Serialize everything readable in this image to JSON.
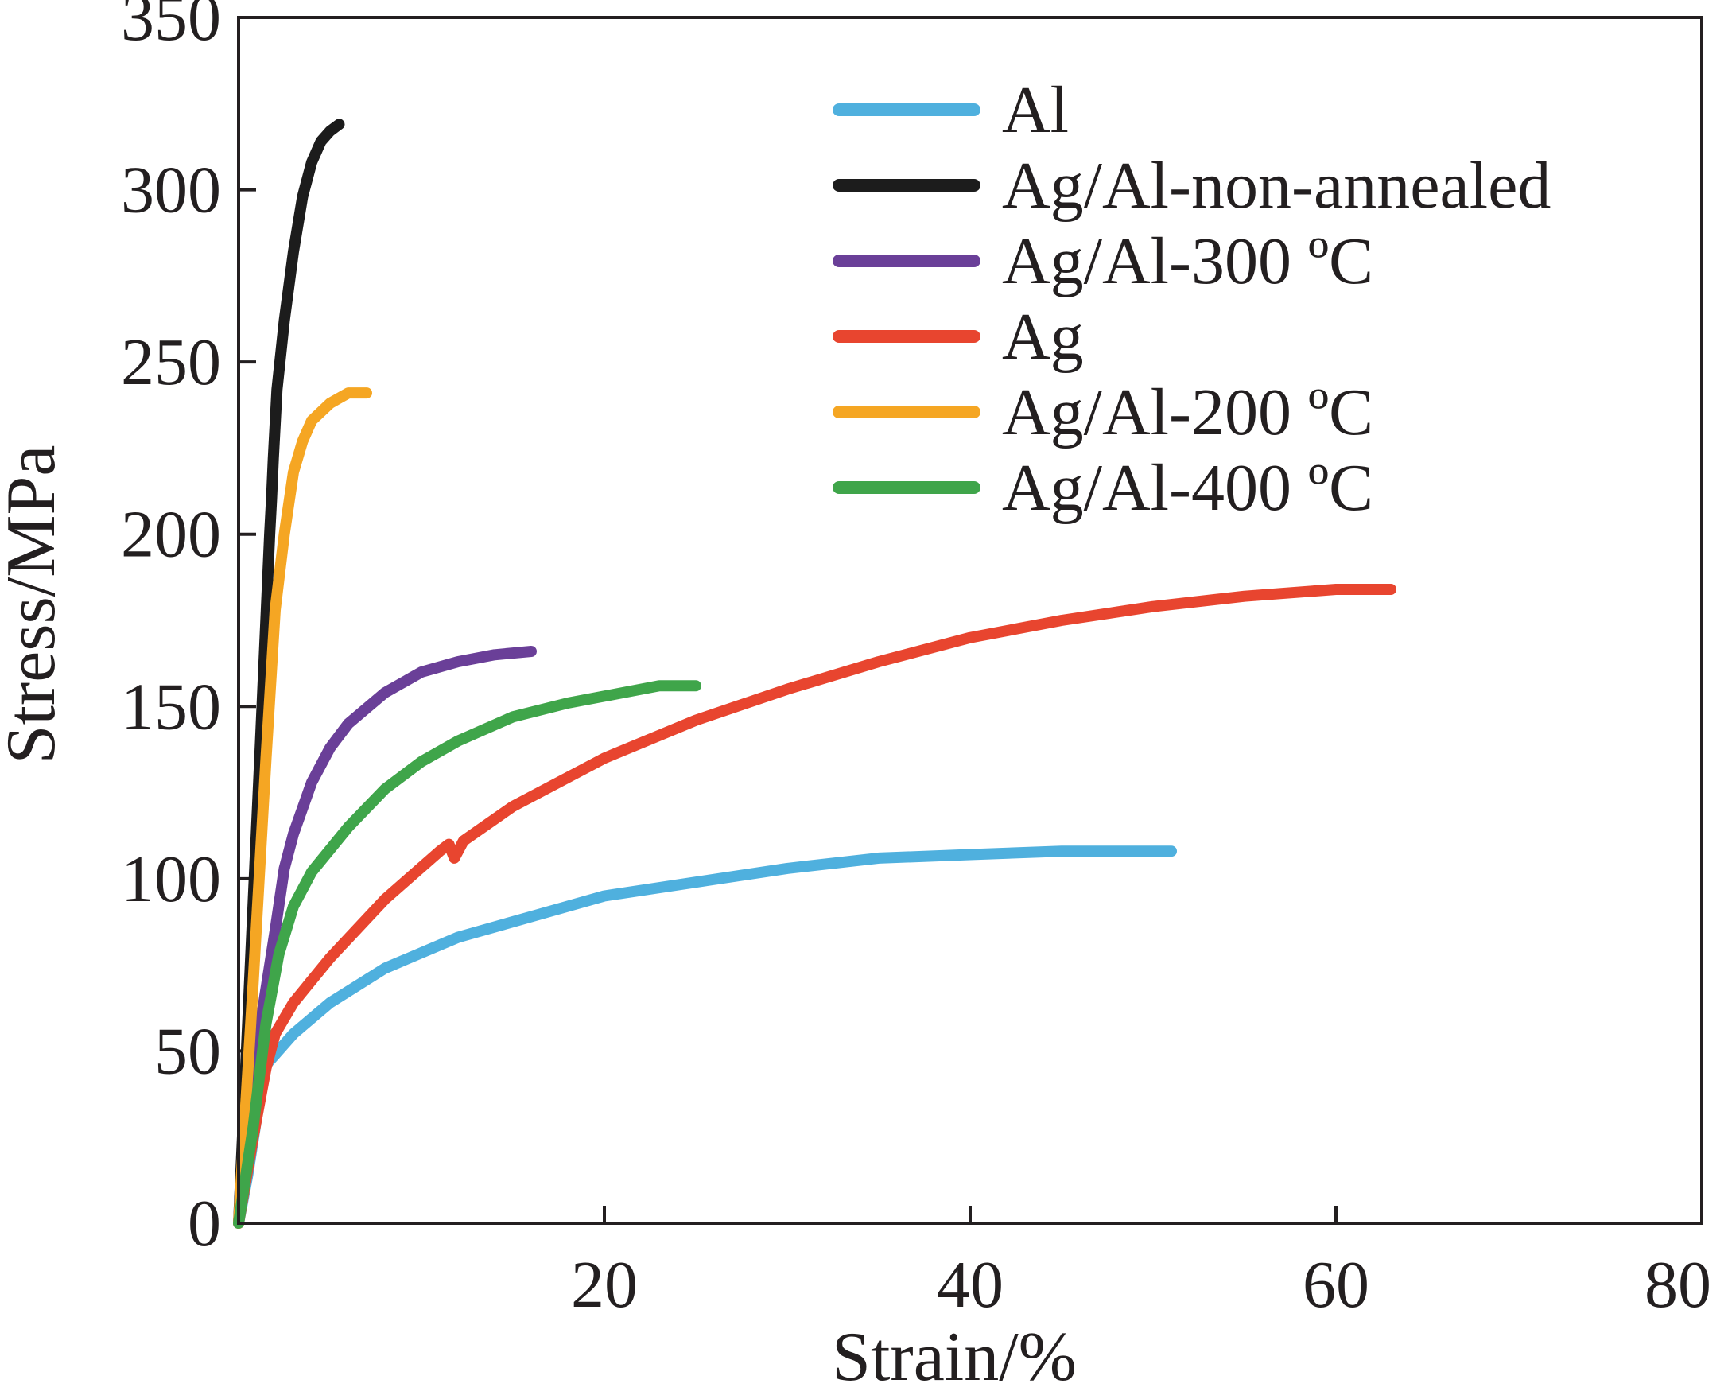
{
  "chart_data": {
    "type": "line",
    "title": "",
    "xlabel": "Strain/%",
    "ylabel": "Stress/MPa",
    "xlim": [
      0,
      80
    ],
    "ylim": [
      0,
      350
    ],
    "x_ticks": [
      "20",
      "40",
      "60",
      "80"
    ],
    "y_ticks": [
      "0",
      "50",
      "100",
      "150",
      "200",
      "250",
      "300",
      "350"
    ],
    "grid": false,
    "legend_position": "top-right",
    "series": [
      {
        "name": "Al",
        "color": "#4fb0de",
        "points": [
          [
            0,
            0
          ],
          [
            0.5,
            14
          ],
          [
            1,
            31
          ],
          [
            1.5,
            46
          ],
          [
            2,
            49
          ],
          [
            3,
            55
          ],
          [
            5,
            64
          ],
          [
            8,
            74
          ],
          [
            12,
            83
          ],
          [
            16,
            89
          ],
          [
            20,
            95
          ],
          [
            25,
            99
          ],
          [
            30,
            103
          ],
          [
            35,
            106
          ],
          [
            40,
            107
          ],
          [
            45,
            108
          ],
          [
            51,
            108
          ]
        ]
      },
      {
        "name": "Ag/Al-non-annealed",
        "color": "#1c1c1c",
        "points": [
          [
            0,
            0
          ],
          [
            0.6,
            70
          ],
          [
            1.2,
            140
          ],
          [
            1.7,
            200
          ],
          [
            1.8,
            210
          ],
          [
            1.9,
            222
          ],
          [
            2.1,
            242
          ],
          [
            2.5,
            262
          ],
          [
            3,
            282
          ],
          [
            3.5,
            298
          ],
          [
            4,
            308
          ],
          [
            4.5,
            314
          ],
          [
            5,
            317
          ],
          [
            5.5,
            319
          ]
        ]
      },
      {
        "name": "Ag/Al-300 ºC",
        "color": "#6a3f98",
        "points": [
          [
            0,
            0
          ],
          [
            0.6,
            30
          ],
          [
            1.2,
            58
          ],
          [
            2,
            85
          ],
          [
            2.5,
            103
          ],
          [
            3,
            113
          ],
          [
            4,
            128
          ],
          [
            5,
            138
          ],
          [
            6,
            145
          ],
          [
            8,
            154
          ],
          [
            10,
            160
          ],
          [
            12,
            163
          ],
          [
            14,
            165
          ],
          [
            16,
            166
          ]
        ]
      },
      {
        "name": "Ag",
        "color": "#e8452f",
        "points": [
          [
            0,
            0
          ],
          [
            0.8,
            25
          ],
          [
            1.5,
            45
          ],
          [
            2,
            55
          ],
          [
            3,
            64
          ],
          [
            5,
            77
          ],
          [
            8,
            94
          ],
          [
            11,
            108
          ],
          [
            11.5,
            110
          ],
          [
            11.8,
            106
          ],
          [
            12.3,
            111
          ],
          [
            15,
            121
          ],
          [
            20,
            135
          ],
          [
            25,
            146
          ],
          [
            30,
            155
          ],
          [
            35,
            163
          ],
          [
            40,
            170
          ],
          [
            45,
            175
          ],
          [
            50,
            179
          ],
          [
            55,
            182
          ],
          [
            60,
            184
          ],
          [
            63,
            184
          ]
        ]
      },
      {
        "name": "Ag/Al-200 ºC",
        "color": "#f5a623",
        "points": [
          [
            0,
            0
          ],
          [
            0.8,
            70
          ],
          [
            1.5,
            135
          ],
          [
            2,
            178
          ],
          [
            2.5,
            200
          ],
          [
            3,
            218
          ],
          [
            3.5,
            227
          ],
          [
            4,
            233
          ],
          [
            5,
            238
          ],
          [
            6,
            241
          ],
          [
            7,
            241
          ]
        ]
      },
      {
        "name": "Ag/Al-400 ºC",
        "color": "#3fa54a",
        "points": [
          [
            0,
            0
          ],
          [
            0.8,
            28
          ],
          [
            1.5,
            58
          ],
          [
            2.2,
            78
          ],
          [
            3,
            92
          ],
          [
            4,
            102
          ],
          [
            6,
            115
          ],
          [
            8,
            126
          ],
          [
            10,
            134
          ],
          [
            12,
            140
          ],
          [
            15,
            147
          ],
          [
            18,
            151
          ],
          [
            21,
            154
          ],
          [
            23,
            156
          ],
          [
            25,
            156
          ]
        ]
      }
    ]
  }
}
